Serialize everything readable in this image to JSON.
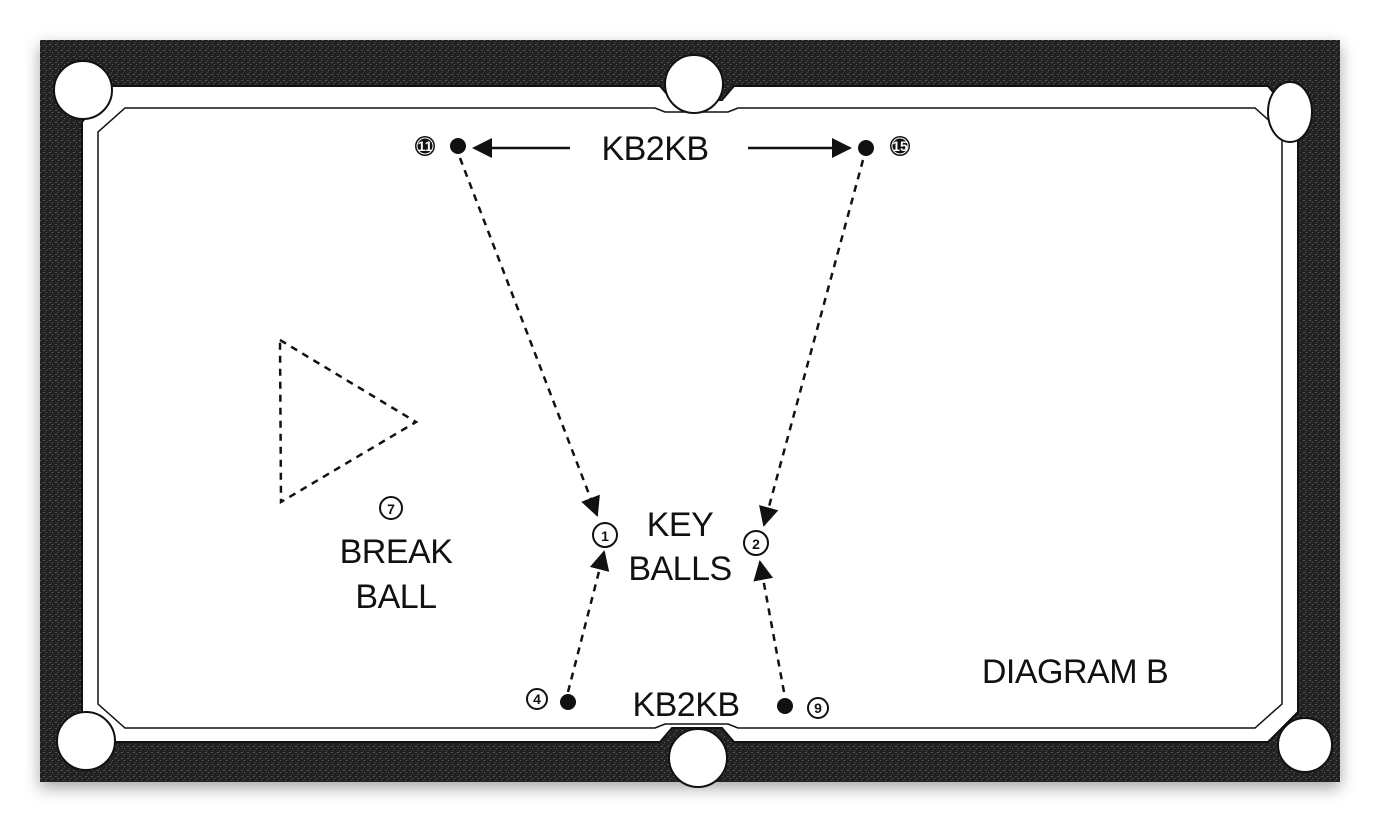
{
  "colors": {
    "rail": "#1e1e1e",
    "cushion": "#ffffff",
    "felt": "#ffffff",
    "ink": "#111111"
  },
  "labels": {
    "top_shot": "KB2KB",
    "bottom_shot": "KB2KB",
    "key_balls_line1": "KEY",
    "key_balls_line2": "BALLS",
    "break_ball_line1": "BREAK",
    "break_ball_line2": "BALL",
    "diagram_title": "DIAGRAM B"
  },
  "balls": [
    {
      "number": "11",
      "role": "top-left"
    },
    {
      "number": "15",
      "role": "top-right"
    },
    {
      "number": "1",
      "role": "key-ball-1"
    },
    {
      "number": "2",
      "role": "key-ball-2"
    },
    {
      "number": "4",
      "role": "bottom-left"
    },
    {
      "number": "9",
      "role": "bottom-right"
    },
    {
      "number": "7",
      "role": "break-ball"
    }
  ]
}
